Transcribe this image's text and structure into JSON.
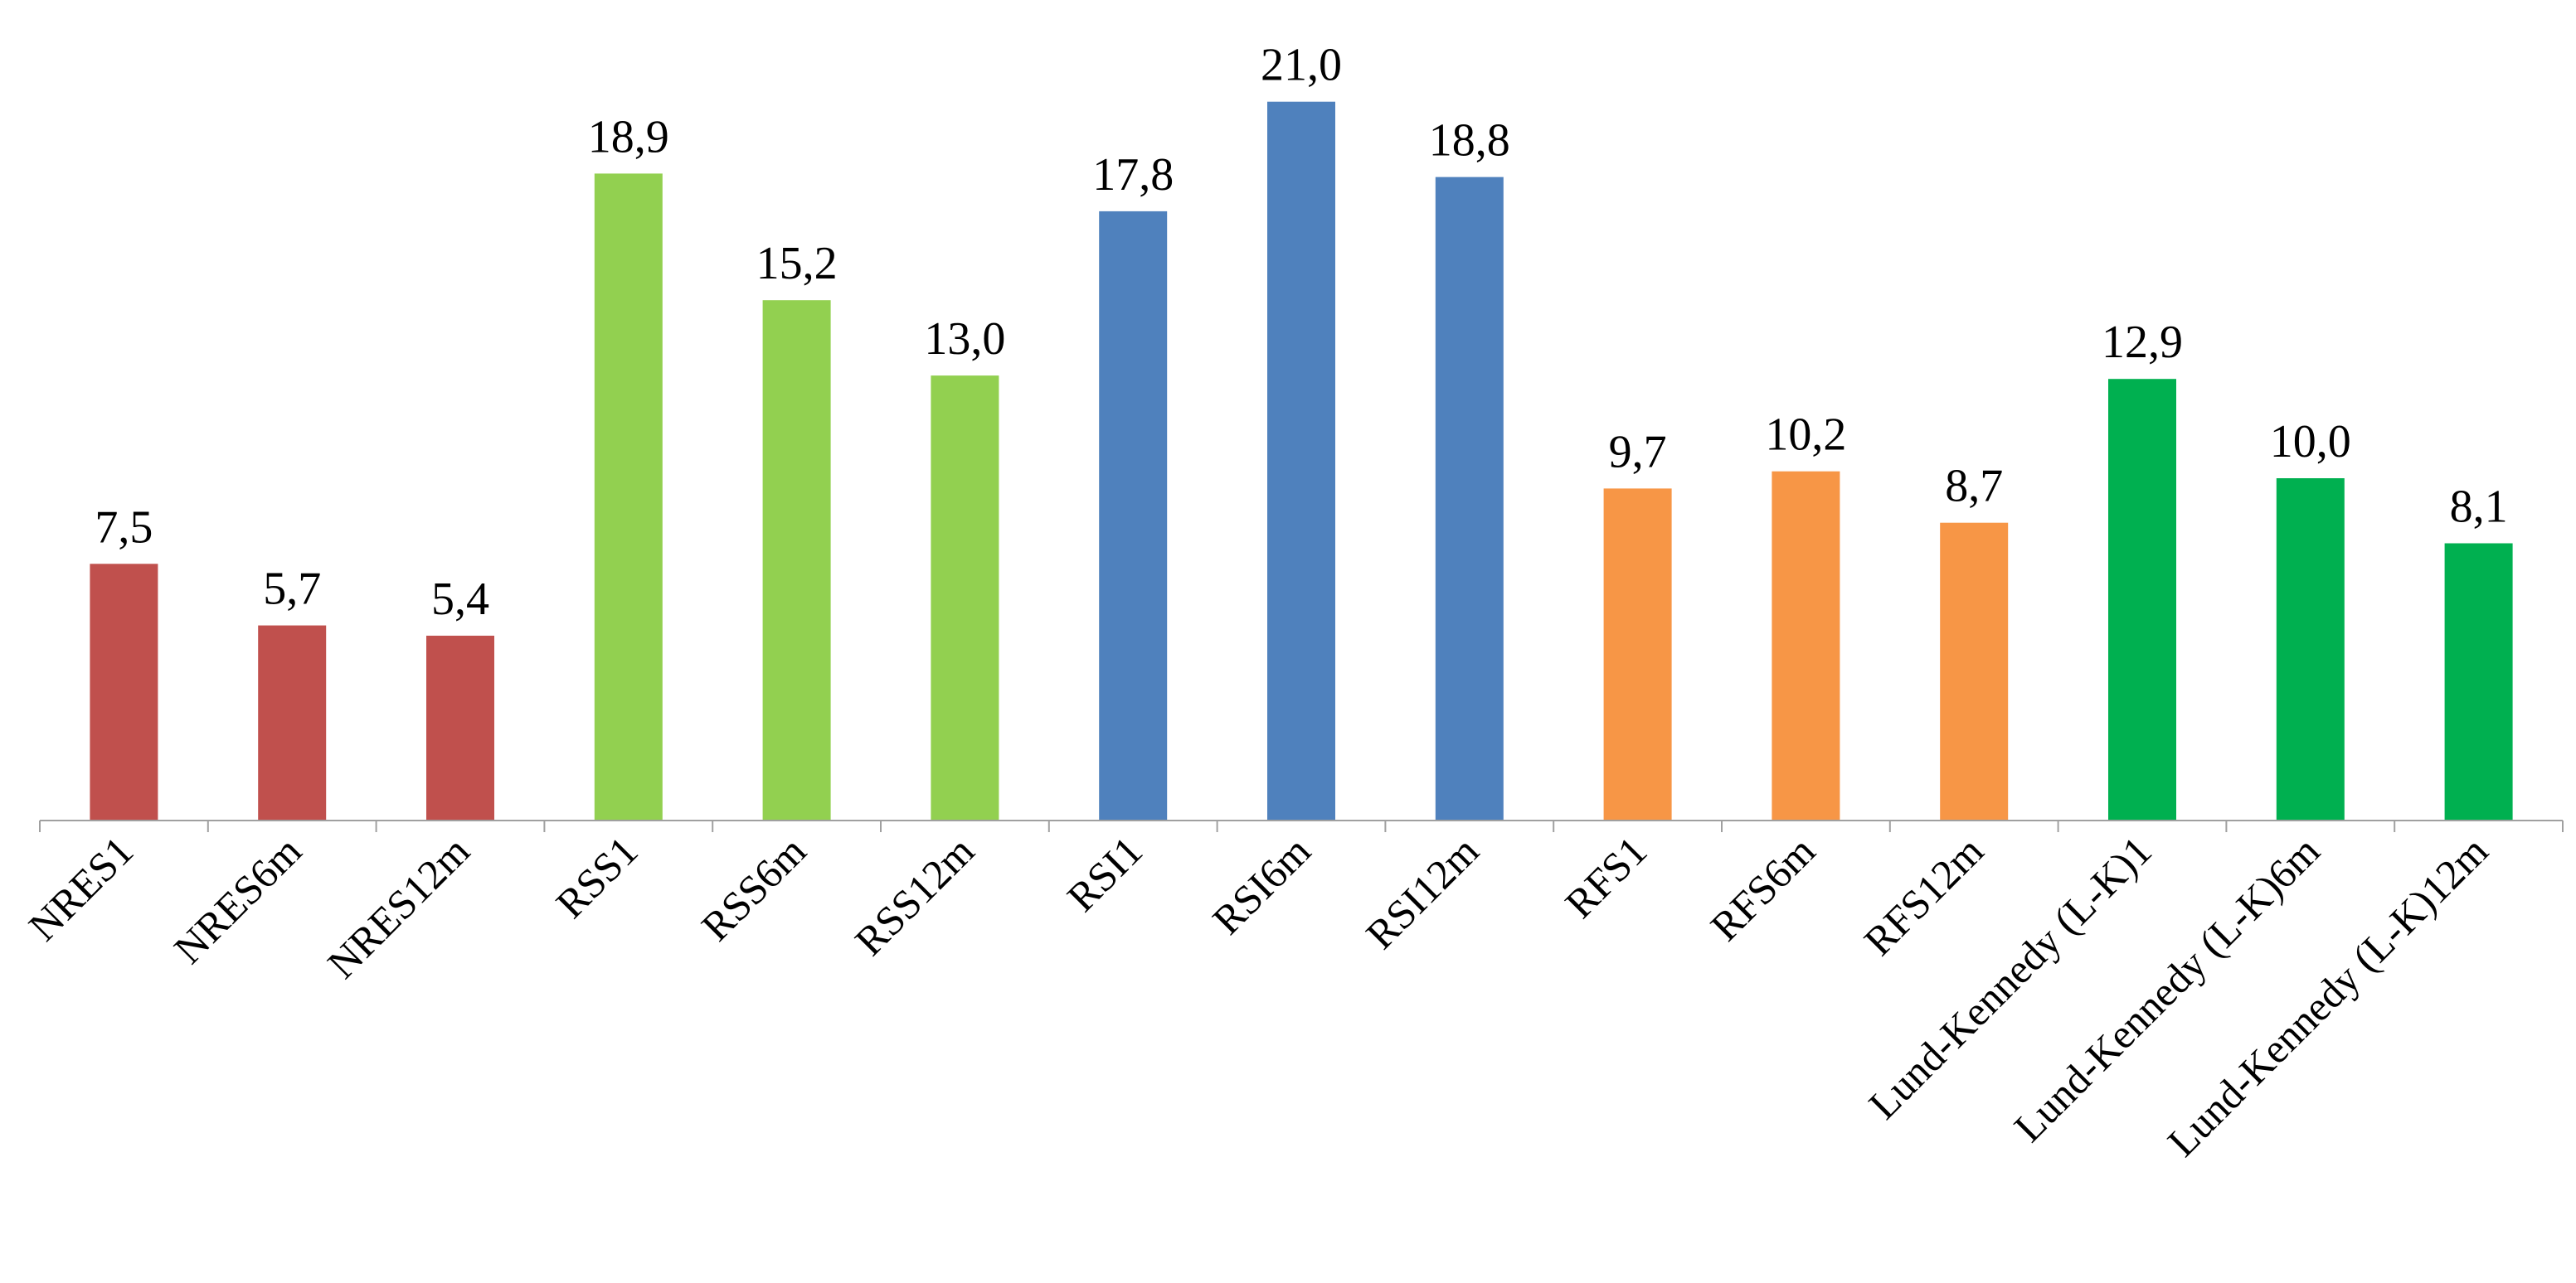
{
  "chart_data": {
    "type": "bar",
    "title": "",
    "xlabel": "",
    "ylabel": "",
    "ylim": [
      0,
      21.5
    ],
    "grid": false,
    "legend": "none",
    "categories": [
      "NRES1",
      "NRES6m",
      "NRES12m",
      "RSS1",
      "RSS6m",
      "RSS12m",
      "RSI1",
      "RSI6m",
      "RSI12m",
      "RFS1",
      "RFS6m",
      "RFS12m",
      "Lund-Kennedy (L-K)1",
      "Lund-Kennedy (L-K)6m",
      "Lund-Kennedy (L-K)12m"
    ],
    "values": [
      7.5,
      5.7,
      5.4,
      18.9,
      15.2,
      13.0,
      17.8,
      21.0,
      18.8,
      9.7,
      10.2,
      8.7,
      12.9,
      10.0,
      8.1
    ],
    "data_labels": [
      "7,5",
      "5,7",
      "5,4",
      "18,9",
      "15,2",
      "13,0",
      "17,8",
      "21,0",
      "18,8",
      "9,7",
      "10,2",
      "8,7",
      "12,9",
      "10,0",
      "8,1"
    ],
    "colors": [
      "#C0504D",
      "#C0504D",
      "#C0504D",
      "#92D050",
      "#92D050",
      "#92D050",
      "#4F81BD",
      "#4F81BD",
      "#4F81BD",
      "#F79646",
      "#F79646",
      "#F79646",
      "#00B050",
      "#00B050",
      "#00B050"
    ],
    "axis_color": "#A0A0A0"
  }
}
